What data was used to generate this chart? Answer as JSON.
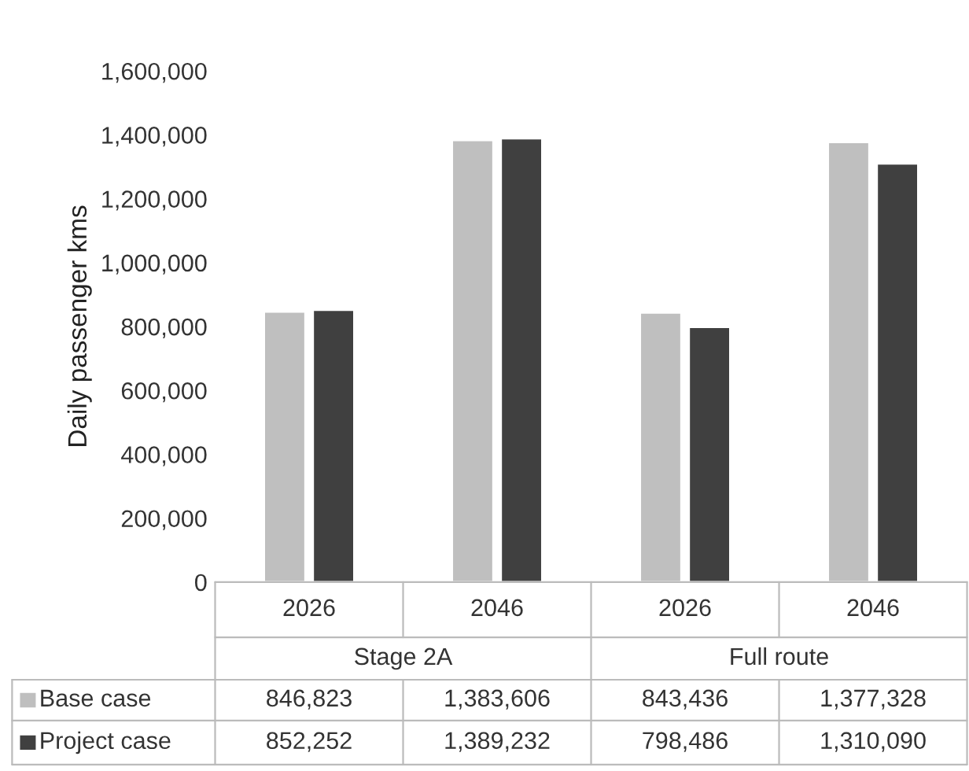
{
  "chart_data": {
    "type": "bar",
    "ylabel": "Daily passenger kms",
    "categories": [
      "2026",
      "2046",
      "2026",
      "2046"
    ],
    "series": [
      {
        "name": "Base case",
        "color": "#bfbfbf",
        "values": [
          846823,
          1383606,
          843436,
          1377328
        ],
        "value_labels": [
          "846,823",
          "1,383,606",
          "843,436",
          "1,377,328"
        ]
      },
      {
        "name": "Project case",
        "color": "#404040",
        "values": [
          852252,
          1389232,
          798486,
          1310090
        ],
        "value_labels": [
          "852,252",
          "1,389,232",
          "798,486",
          "1,310,090"
        ]
      }
    ],
    "annotations": [
      "Stage 2A",
      "Full route"
    ],
    "ylim": [
      0,
      1600000
    ],
    "yticks": [
      0,
      {
        "value": 200000,
        "label": "200,000"
      },
      {
        "value": 400000,
        "label": "400,000"
      },
      {
        "value": 600000,
        "label": "600,000"
      },
      {
        "value": 800000,
        "label": "800,000"
      },
      {
        "value": 1000000,
        "label": "1,000,000"
      },
      {
        "value": 1200000,
        "label": "1,200,000"
      },
      {
        "value": 1400000,
        "label": "1,400,000"
      },
      {
        "value": 1600000,
        "label": "1,600,000"
      }
    ],
    "grid": false,
    "legend": "bottom"
  }
}
